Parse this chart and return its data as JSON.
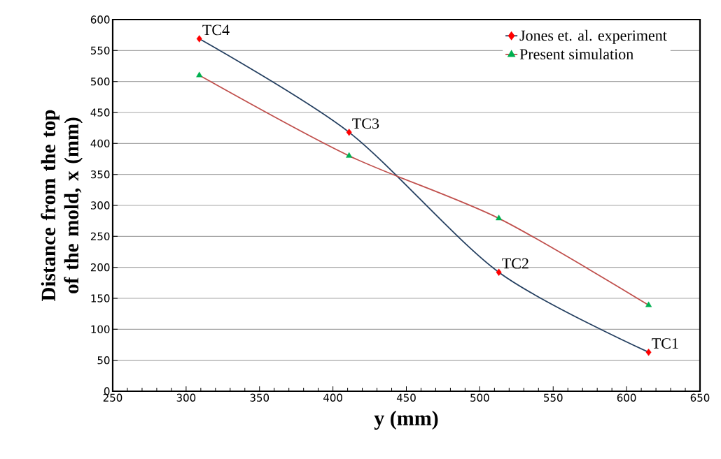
{
  "chart_data": {
    "type": "line",
    "xlabel": "y (mm)",
    "ylabel": "Distance from the top of the mold, x (mm)",
    "x": [
      309,
      411,
      513,
      615
    ],
    "series": [
      {
        "name": "Jones et. al. experiment",
        "color": "#243f60",
        "colors": [
          "#ff0000",
          "#ff0000",
          "#ff0000",
          "#ff0000"
        ],
        "marker": "diamond",
        "values": [
          569,
          418,
          192,
          63
        ]
      },
      {
        "name": "Present simulation",
        "color": "#c0504d",
        "colors": [
          "#00b050",
          "#00b050",
          "#00b050",
          "#00b050"
        ],
        "marker": "triangle",
        "values": [
          510,
          380,
          279,
          139
        ]
      }
    ],
    "xlim": [
      250,
      650
    ],
    "ylim": [
      0,
      600
    ],
    "xticks": [
      250,
      300,
      350,
      400,
      450,
      500,
      550,
      600,
      650
    ],
    "yticks": [
      0,
      50,
      100,
      150,
      200,
      250,
      300,
      350,
      400,
      450,
      500,
      550,
      600
    ],
    "annotations": [
      {
        "text": "TC4",
        "x": 309,
        "y": 569
      },
      {
        "text": "TC3",
        "x": 411,
        "y": 418
      },
      {
        "text": "TC2",
        "x": 513,
        "y": 192
      },
      {
        "text": "TC1",
        "x": 615,
        "y": 63
      }
    ],
    "grid": "y",
    "legend": "top right",
    "line_style": "solid"
  }
}
